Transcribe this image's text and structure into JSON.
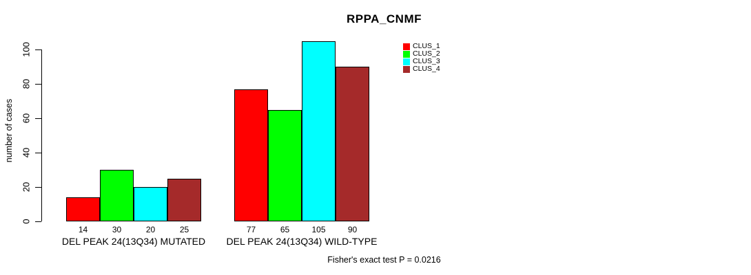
{
  "chart_data": {
    "type": "bar",
    "title": "RPPA_CNMF",
    "ylabel": "number of cases",
    "xlabel": "",
    "ylim": [
      0,
      105
    ],
    "yticks": [
      0,
      20,
      40,
      60,
      80,
      100
    ],
    "grid": false,
    "legend_position": "top-right-outside-plot",
    "categories": [
      "DEL PEAK 24(13Q34) MUTATED",
      "DEL PEAK 24(13Q34) WILD-TYPE"
    ],
    "series": [
      {
        "name": "CLUS_1",
        "color": "#FF0000",
        "values": [
          14,
          77
        ]
      },
      {
        "name": "CLUS_2",
        "color": "#00FF00",
        "values": [
          30,
          65
        ]
      },
      {
        "name": "CLUS_3",
        "color": "#00FFFF",
        "values": [
          20,
          105
        ]
      },
      {
        "name": "CLUS_4",
        "color": "#A52A2A",
        "values": [
          25,
          90
        ]
      }
    ],
    "bar_value_labels_shown": true,
    "footnote": "Fisher's exact test P = 0.0216",
    "colors": {
      "background": "#FFFFFF",
      "axis": "#000000",
      "text": "#000000",
      "bar_border": "#000000"
    }
  }
}
